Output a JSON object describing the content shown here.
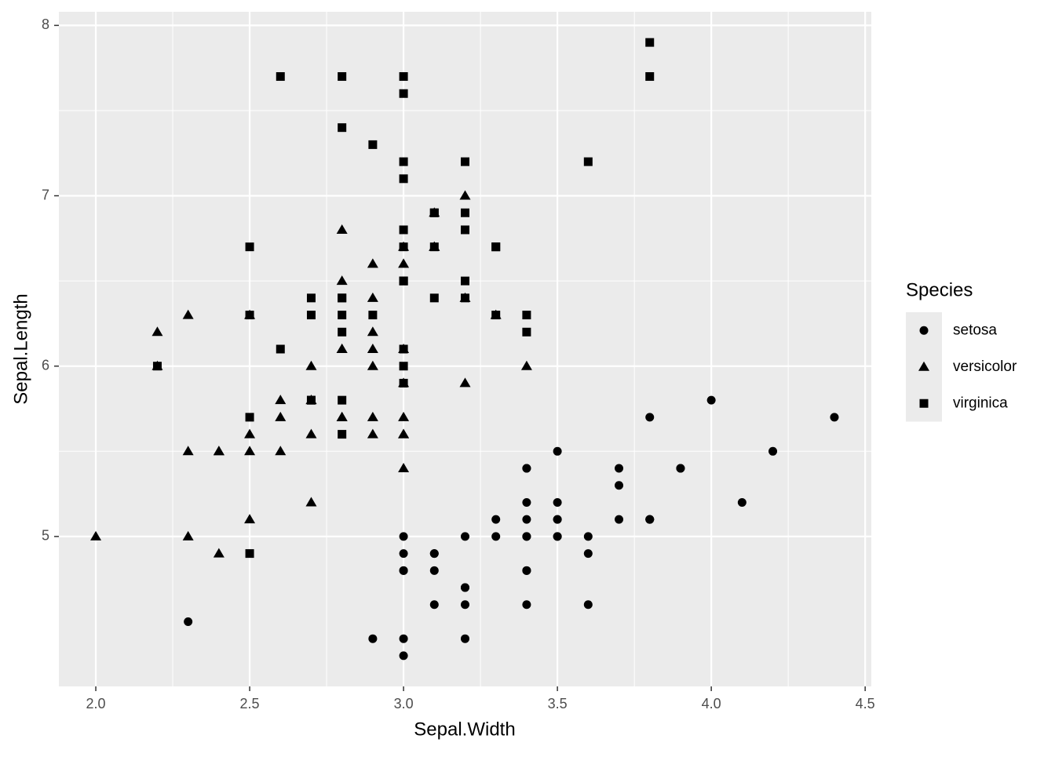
{
  "chart_data": {
    "type": "scatter",
    "x_label": "Sepal.Width",
    "y_label": "Sepal.Length",
    "legend_title": "Species",
    "legend": "right",
    "grid": true,
    "xlim": [
      1.88,
      4.52
    ],
    "ylim": [
      4.12,
      8.08
    ],
    "xticks": [
      {
        "value": 2,
        "label": "2.0"
      },
      {
        "value": 2.5,
        "label": "2.5"
      },
      {
        "value": 3,
        "label": "3.0"
      },
      {
        "value": 3.5,
        "label": "3.5"
      },
      {
        "value": 4,
        "label": "4.0"
      },
      {
        "value": 4.5,
        "label": "4.5"
      }
    ],
    "yticks": [
      5,
      6,
      7,
      8
    ],
    "series": [
      {
        "name": "setosa",
        "shape": "circle",
        "color": "#000000",
        "x": [
          3.5,
          3.0,
          3.2,
          3.1,
          3.6,
          3.9,
          3.4,
          3.4,
          2.9,
          3.1,
          3.7,
          3.4,
          3.0,
          3.0,
          4.0,
          4.4,
          3.9,
          3.5,
          3.8,
          3.8,
          3.4,
          3.7,
          3.6,
          3.3,
          3.4,
          3.0,
          3.4,
          3.5,
          3.4,
          3.2,
          3.1,
          3.4,
          4.1,
          4.2,
          3.1,
          3.2,
          3.5,
          3.6,
          3.0,
          3.4,
          3.5,
          2.3,
          3.2,
          3.5,
          3.8,
          3.0,
          3.8,
          3.2,
          3.7,
          3.3
        ],
        "y": [
          5.1,
          4.9,
          4.7,
          4.6,
          5.0,
          5.4,
          4.6,
          5.0,
          4.4,
          4.9,
          5.4,
          4.8,
          4.8,
          4.3,
          5.8,
          5.7,
          5.4,
          5.1,
          5.7,
          5.1,
          5.4,
          5.1,
          4.6,
          5.1,
          4.8,
          5.0,
          5.0,
          5.2,
          5.2,
          4.7,
          4.8,
          5.4,
          5.2,
          5.5,
          4.9,
          5.0,
          5.5,
          4.9,
          4.4,
          5.1,
          5.0,
          4.5,
          4.4,
          5.0,
          5.1,
          4.8,
          5.1,
          4.6,
          5.3,
          5.0
        ]
      },
      {
        "name": "versicolor",
        "shape": "triangle",
        "color": "#000000",
        "x": [
          3.2,
          3.2,
          3.1,
          2.3,
          2.8,
          2.8,
          3.3,
          2.4,
          2.9,
          2.7,
          2.0,
          3.0,
          2.2,
          2.9,
          2.9,
          3.1,
          3.0,
          2.7,
          2.2,
          2.5,
          3.2,
          2.8,
          2.5,
          2.8,
          2.9,
          3.0,
          2.8,
          3.0,
          2.9,
          2.6,
          2.4,
          2.4,
          2.7,
          2.7,
          3.0,
          3.4,
          3.1,
          2.3,
          3.0,
          2.5,
          2.6,
          3.0,
          2.6,
          2.3,
          2.7,
          3.0,
          2.9,
          2.9,
          2.5,
          2.8
        ],
        "y": [
          7.0,
          6.4,
          6.9,
          5.5,
          6.5,
          5.7,
          6.3,
          4.9,
          6.6,
          5.2,
          5.0,
          5.9,
          6.0,
          6.1,
          5.6,
          6.7,
          5.6,
          5.8,
          6.2,
          5.6,
          5.9,
          6.1,
          6.3,
          6.1,
          6.4,
          6.6,
          6.8,
          6.7,
          6.0,
          5.7,
          5.5,
          5.5,
          5.8,
          6.0,
          5.4,
          6.0,
          6.7,
          6.3,
          5.6,
          5.5,
          5.5,
          6.1,
          5.8,
          5.0,
          5.6,
          5.7,
          5.7,
          6.2,
          5.1,
          5.7
        ]
      },
      {
        "name": "virginica",
        "shape": "square",
        "color": "#000000",
        "x": [
          3.3,
          2.7,
          3.0,
          2.9,
          3.0,
          3.0,
          2.5,
          2.9,
          2.5,
          3.6,
          3.2,
          2.7,
          3.0,
          2.5,
          2.8,
          3.2,
          3.0,
          3.8,
          2.6,
          2.2,
          3.2,
          2.8,
          2.8,
          2.7,
          3.3,
          3.2,
          2.8,
          3.0,
          2.8,
          3.0,
          2.8,
          3.8,
          2.8,
          2.8,
          2.6,
          3.0,
          3.4,
          3.1,
          3.0,
          3.1,
          3.1,
          3.1,
          2.7,
          3.2,
          3.3,
          3.0,
          2.5,
          3.0,
          3.4,
          3.0
        ],
        "y": [
          6.3,
          5.8,
          7.1,
          6.3,
          6.5,
          7.6,
          4.9,
          7.3,
          6.7,
          7.2,
          6.5,
          6.4,
          6.8,
          5.7,
          5.8,
          6.4,
          6.5,
          7.7,
          7.7,
          6.0,
          6.9,
          5.6,
          7.7,
          6.3,
          6.7,
          7.2,
          6.2,
          6.1,
          6.4,
          7.2,
          7.4,
          7.9,
          6.4,
          6.3,
          6.1,
          7.7,
          6.3,
          6.4,
          6.0,
          6.9,
          6.7,
          6.9,
          5.8,
          6.8,
          6.7,
          6.7,
          6.3,
          6.5,
          6.2,
          5.9
        ]
      }
    ]
  }
}
